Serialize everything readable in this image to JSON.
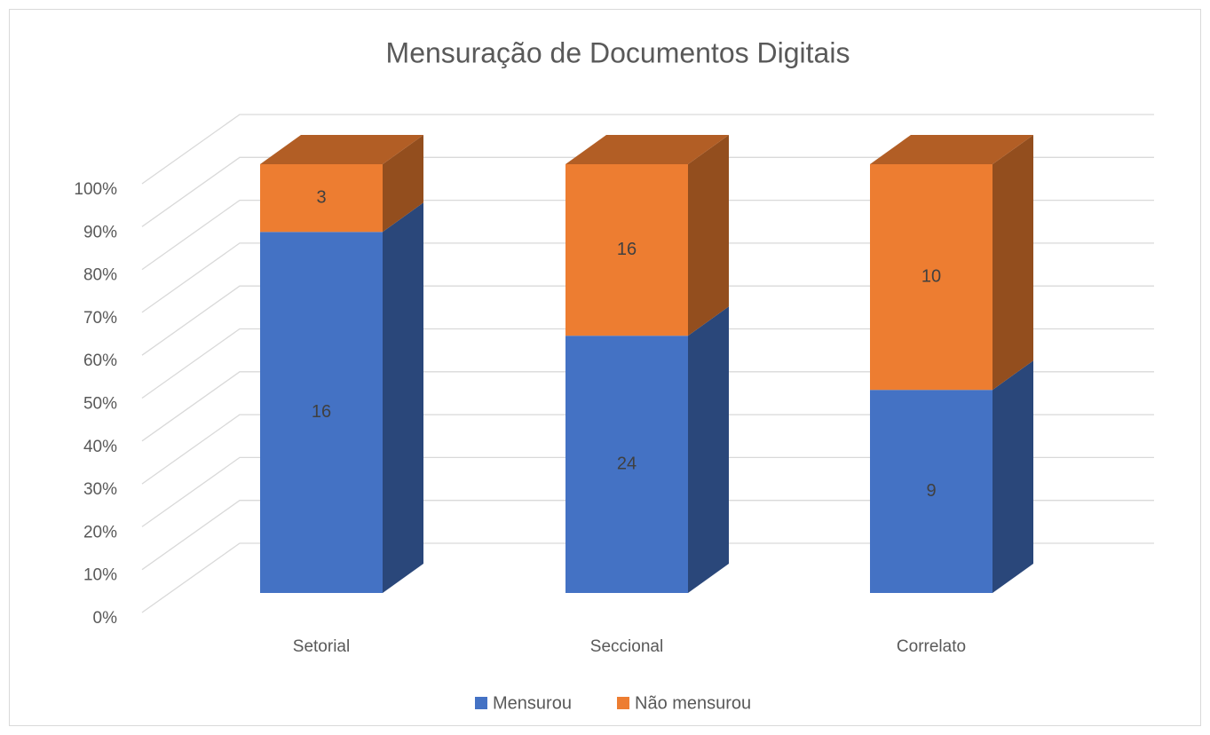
{
  "chart_data": {
    "type": "bar",
    "stacked": "percent",
    "title": "Mensuração de Documentos Digitais",
    "categories": [
      "Setorial",
      "Seccional",
      "Correlato"
    ],
    "series": [
      {
        "name": "Mensurou",
        "color": "#4472c4",
        "values": [
          16,
          24,
          9
        ]
      },
      {
        "name": "Não mensurou",
        "color": "#ed7d31",
        "values": [
          3,
          16,
          10
        ]
      }
    ],
    "ylim": [
      0,
      100
    ],
    "yticks": [
      {
        "value": 0,
        "label": "0%"
      },
      {
        "value": 10,
        "label": "10%"
      },
      {
        "value": 20,
        "label": "20%"
      },
      {
        "value": 30,
        "label": "30%"
      },
      {
        "value": 40,
        "label": "40%"
      },
      {
        "value": 50,
        "label": "50%"
      },
      {
        "value": 60,
        "label": "60%"
      },
      {
        "value": 70,
        "label": "70%"
      },
      {
        "value": 80,
        "label": "80%"
      },
      {
        "value": 90,
        "label": "90%"
      },
      {
        "value": 100,
        "label": "100%"
      }
    ],
    "grid": true,
    "legend": "bottom"
  }
}
